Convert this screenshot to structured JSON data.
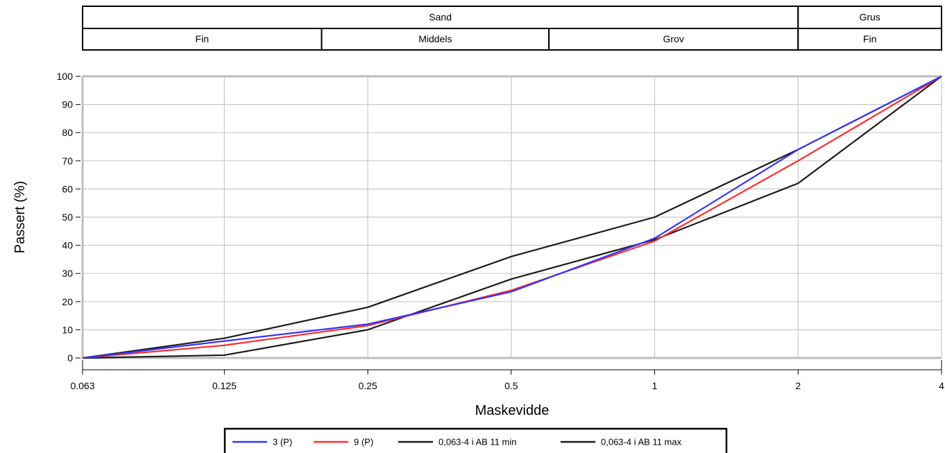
{
  "header_bands": {
    "top": [
      {
        "label": "Sand",
        "from": 0.063,
        "to": 2
      },
      {
        "label": "Grus",
        "from": 2,
        "to": 4
      }
    ],
    "bottom": [
      {
        "label": "Fin",
        "from": 0.063,
        "to": 0.2
      },
      {
        "label": "Middels",
        "from": 0.2,
        "to": 0.6
      },
      {
        "label": "Grov",
        "from": 0.6,
        "to": 2
      },
      {
        "label": "Fin",
        "from": 2,
        "to": 4
      }
    ]
  },
  "chart_data": {
    "type": "line",
    "title": "",
    "xlabel": "Maskevidde",
    "ylabel": "Passert (%)",
    "x": [
      0.063,
      0.125,
      0.25,
      0.5,
      1,
      2,
      4
    ],
    "x_tick_labels": [
      "0.063",
      "0.125",
      "0.25",
      "0.5",
      "1",
      "2",
      "4"
    ],
    "x_scale": "log",
    "xlim": [
      0.063,
      4
    ],
    "ylim": [
      0,
      100
    ],
    "y_ticks": [
      0,
      10,
      20,
      30,
      40,
      50,
      60,
      70,
      80,
      90,
      100
    ],
    "grid": true,
    "legend_position": "bottom",
    "series": [
      {
        "name": "3 (P)",
        "color": "#3333ff",
        "values": [
          0,
          6,
          12,
          23.5,
          42.5,
          74,
          100
        ]
      },
      {
        "name": "9 (P)",
        "color": "#ff2b2b",
        "values": [
          0,
          4.5,
          11.5,
          24,
          41.5,
          70,
          100
        ]
      },
      {
        "name": "0,063-4 i AB 11 min",
        "color": "#1a1a1a",
        "values": [
          0,
          1,
          10,
          28,
          42,
          62,
          100
        ]
      },
      {
        "name": "0,063-4 i AB 11 max",
        "color": "#1a1a1a",
        "values": [
          0,
          7,
          18,
          36,
          50,
          74,
          100
        ]
      }
    ]
  }
}
